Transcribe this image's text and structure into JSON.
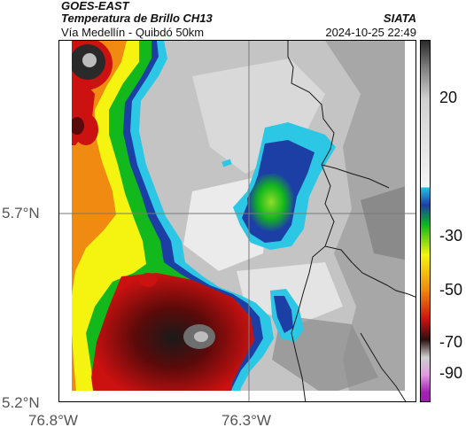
{
  "header": {
    "satellite": "GOES-EAST",
    "product": "Temperatura de Brillo CH13",
    "region": "Vía Medellín - Quibdó 50km",
    "organization": "SIATA",
    "timestamp": "2024-10-25 22:49"
  },
  "map": {
    "lat_labels": [
      "5.7°N",
      "5.2°N"
    ],
    "lon_labels": [
      "76.8°W",
      "76.3°W"
    ],
    "reference_lines": "gray crosshair at 5.7°N and 76.3°W",
    "colors": {
      "warm_surface": "#c8c8c8",
      "cloud_cold": "#12b81c",
      "cloud_very_cold": "#cc1111",
      "coldest_tops": "#2a2a2a"
    }
  },
  "colorbar": {
    "labels": [
      "20",
      "-30",
      "-50",
      "-70",
      "-90"
    ],
    "stops": [
      {
        "value": 30,
        "color": "#2a2a2a"
      },
      {
        "value": 20,
        "color": "#858585"
      },
      {
        "value": 10,
        "color": "#d0d0d0"
      },
      {
        "value": -20,
        "color": "#f5f5f5"
      },
      {
        "value": -20,
        "color": "#27c4e6"
      },
      {
        "value": -26,
        "color": "#1c3fa6"
      },
      {
        "value": -33,
        "color": "#12b81c"
      },
      {
        "value": -43,
        "color": "#f4f410"
      },
      {
        "value": -55,
        "color": "#f08a10"
      },
      {
        "value": -65,
        "color": "#cc1111"
      },
      {
        "value": -72,
        "color": "#2a1010"
      },
      {
        "value": -78,
        "color": "#cfcfcf"
      },
      {
        "value": -84,
        "color": "#e09ae0"
      },
      {
        "value": -90,
        "color": "#a020b0"
      }
    ]
  }
}
